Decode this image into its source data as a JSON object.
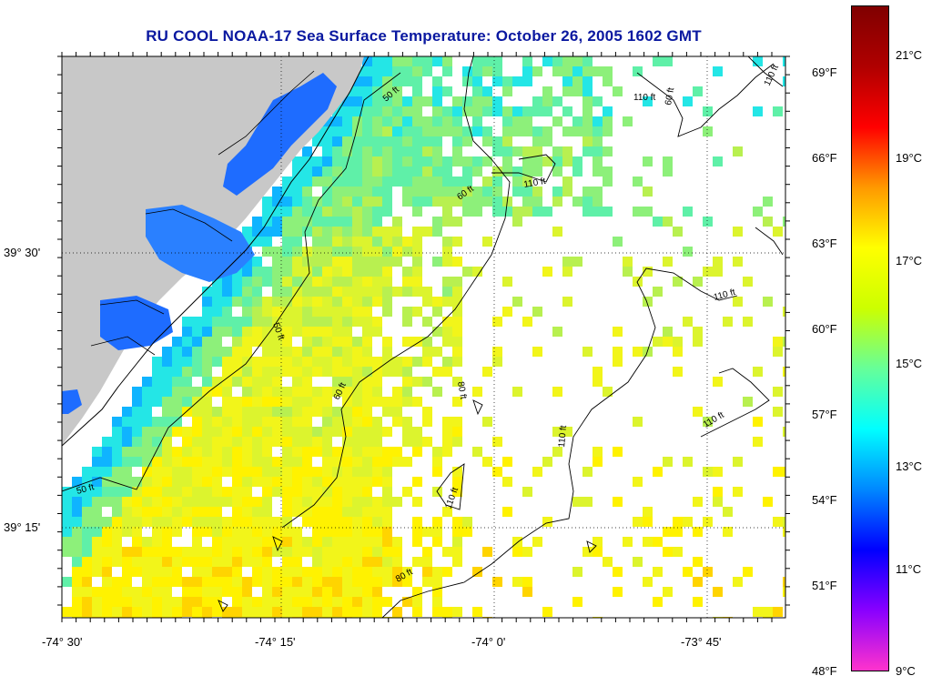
{
  "title": "RU COOL  NOAA-17  Sea Surface Temperature:  October 26, 2005 1602 GMT",
  "lat_ticks": [
    {
      "label": "39° 30'",
      "value": 39.5
    },
    {
      "label": "39° 15'",
      "value": 39.25
    }
  ],
  "lon_ticks": [
    {
      "label": "-74° 30'",
      "value": -74.5
    },
    {
      "label": "-74° 15'",
      "value": -74.25
    },
    {
      "label": "-74° 0'",
      "value": -74.0
    },
    {
      "label": "-73° 45'",
      "value": -73.75
    }
  ],
  "colorbar": {
    "fahrenheit_labels": [
      "69°F",
      "66°F",
      "63°F",
      "60°F",
      "57°F",
      "54°F",
      "51°F",
      "48°F"
    ],
    "celsius_labels": [
      "21°C",
      "19°C",
      "17°C",
      "15°C",
      "13°C",
      "11°C",
      "9°C"
    ],
    "colors": [
      "#ff33cc",
      "#8800ff",
      "#0000ff",
      "#0088ff",
      "#00ffff",
      "#66ff99",
      "#ccff00",
      "#ffff00",
      "#ff9900",
      "#ff0000",
      "#b00000",
      "#800000"
    ]
  },
  "contour_labels": [
    "50 ft",
    "60 ft",
    "80 ft",
    "110 ft"
  ],
  "land_color": "#c8c8c8",
  "coast_water_color": "#1e6cff"
}
